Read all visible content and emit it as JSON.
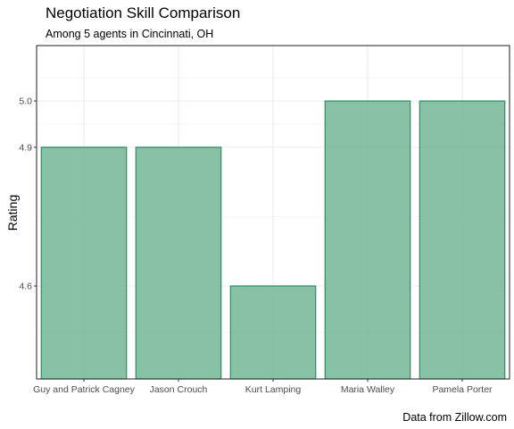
{
  "chart_data": {
    "type": "bar",
    "title": "Negotiation Skill Comparison",
    "subtitle": "Among 5 agents in Cincinnati, OH",
    "caption": "Data from Zillow.com",
    "xlabel": "",
    "ylabel": "Rating",
    "categories": [
      "Guy and Patrick Cagney",
      "Jason Crouch",
      "Kurt Lamping",
      "Maria Walley",
      "Pamela Porter"
    ],
    "values": [
      4.9,
      4.9,
      4.6,
      5.0,
      5.0
    ],
    "yticks": [
      4.6,
      4.9,
      5.0
    ],
    "ytick_labels": [
      "4.6",
      "4.9",
      "5.0"
    ],
    "grid": true,
    "bar_fill": "#6fb393",
    "bar_stroke": "#2e8b62",
    "panel_border": "#333333",
    "grid_color": "#ebebeb"
  }
}
